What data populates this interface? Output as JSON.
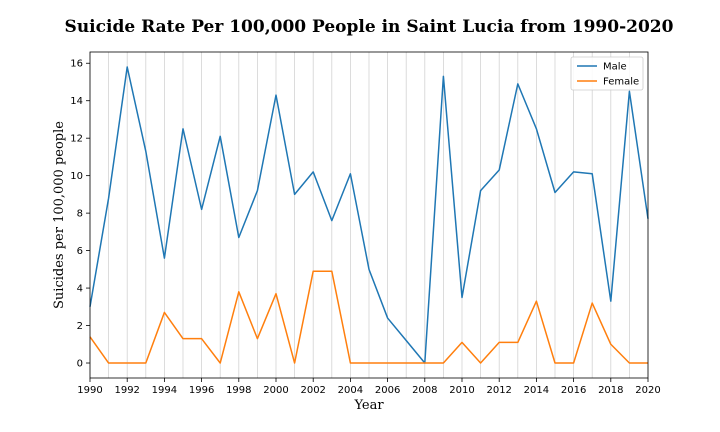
{
  "chart_data": {
    "type": "line",
    "title": "Suicide Rate Per 100,000 People in Saint Lucia from 1990-2020",
    "xlabel": "Year",
    "ylabel": "Suicides per 100,000 people",
    "xlim": [
      1990,
      2020
    ],
    "ylim": [
      -0.8,
      16.6
    ],
    "x_ticks": [
      1990,
      1992,
      1994,
      1996,
      1998,
      2000,
      2002,
      2004,
      2006,
      2008,
      2010,
      2012,
      2014,
      2016,
      2018,
      2020
    ],
    "y_ticks": [
      0,
      2,
      4,
      6,
      8,
      10,
      12,
      14,
      16
    ],
    "grid": "vertical",
    "legend_position": "top-right",
    "x": [
      1990,
      1991,
      1992,
      1993,
      1994,
      1995,
      1996,
      1997,
      1998,
      1999,
      2000,
      2001,
      2002,
      2003,
      2004,
      2005,
      2006,
      2007,
      2008,
      2009,
      2010,
      2011,
      2012,
      2013,
      2014,
      2015,
      2016,
      2017,
      2018,
      2019,
      2020
    ],
    "series": [
      {
        "name": "Male",
        "color": "#1f77b4",
        "values": [
          3.0,
          8.8,
          15.8,
          11.3,
          5.6,
          12.5,
          8.2,
          12.1,
          6.7,
          9.2,
          14.3,
          9.0,
          10.2,
          7.6,
          10.1,
          5.0,
          2.4,
          1.2,
          0.0,
          15.3,
          3.5,
          9.2,
          10.3,
          14.9,
          12.5,
          9.1,
          10.2,
          10.1,
          3.3,
          14.5,
          7.7
        ]
      },
      {
        "name": "Female",
        "color": "#ff7f0e",
        "values": [
          1.4,
          0.0,
          0.0,
          0.0,
          2.7,
          1.3,
          1.3,
          0.0,
          3.8,
          1.3,
          3.7,
          0.0,
          4.9,
          4.9,
          0.0,
          0.0,
          0.0,
          0.0,
          0.0,
          0.0,
          1.1,
          0.0,
          1.1,
          1.1,
          3.3,
          0.0,
          0.0,
          3.2,
          1.0,
          0.0,
          0.0
        ]
      }
    ]
  }
}
